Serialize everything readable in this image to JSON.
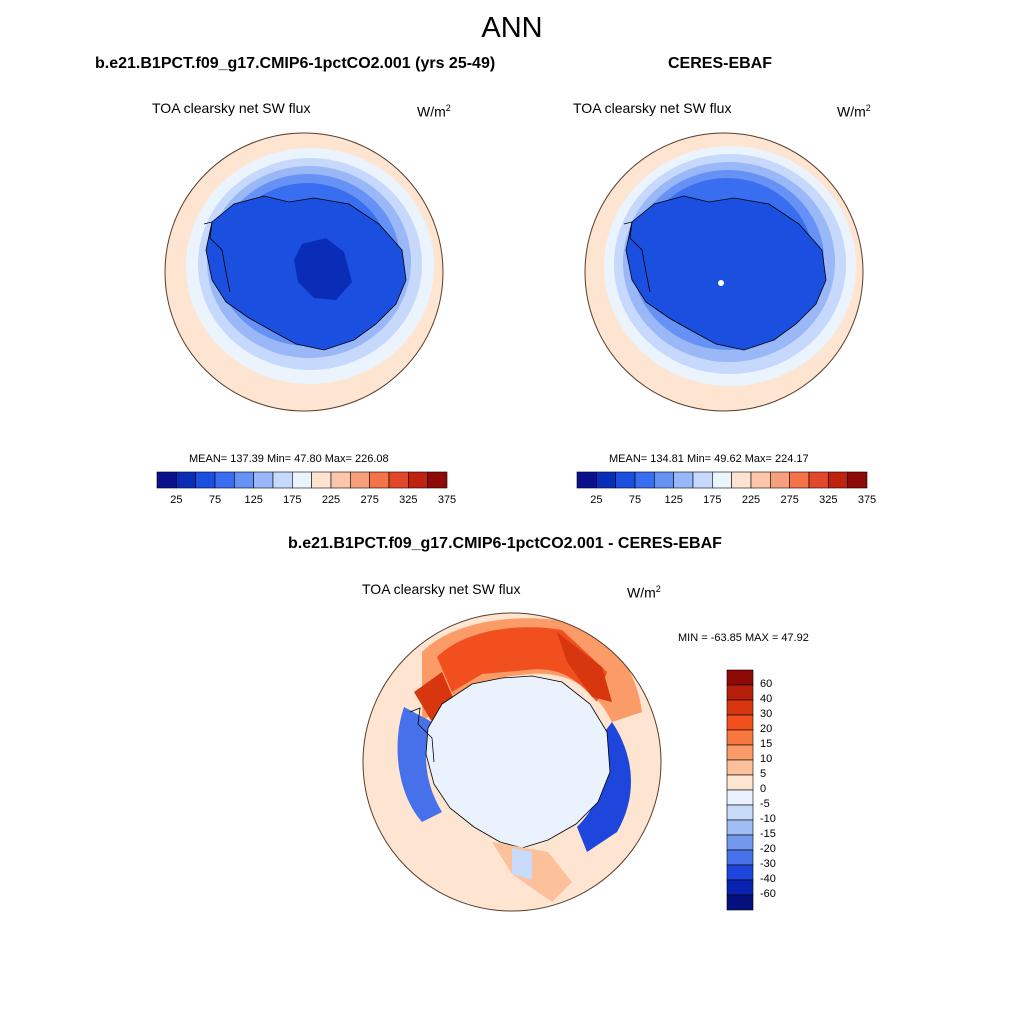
{
  "figure": {
    "title": "ANN"
  },
  "panels": [
    {
      "id": "model",
      "title": "b.e21.B1PCT.f09_g17.CMIP6-1pctCO2.001 (yrs 25-49)",
      "variable": "TOA clearsky net SW flux",
      "units_base": "W/m",
      "units_exp": "2",
      "stats": "MEAN= 137.39  Min=  47.80  Max= 226.08",
      "mean": 137.39,
      "min": 47.8,
      "max": 226.08
    },
    {
      "id": "obs",
      "title": "CERES-EBAF",
      "variable": "TOA clearsky net SW flux",
      "units_base": "W/m",
      "units_exp": "2",
      "stats": "MEAN= 134.81  Min=  49.62  Max= 224.17",
      "mean": 134.81,
      "min": 49.62,
      "max": 224.17
    },
    {
      "id": "diff",
      "title": "b.e21.B1PCT.f09_g17.CMIP6-1pctCO2.001 - CERES-EBAF",
      "variable": "TOA clearsky net SW flux",
      "units_base": "W/m",
      "units_exp": "2",
      "stats": "MIN = -63.85 MAX =  47.92",
      "min": -63.85,
      "max": 47.92
    }
  ],
  "colorbar_abs": {
    "tick_labels": [
      "25",
      "75",
      "125",
      "175",
      "225",
      "275",
      "325",
      "375"
    ],
    "colors": [
      "#0a0f8c",
      "#0a2db8",
      "#1a4fe0",
      "#3a6ef0",
      "#6692f5",
      "#9ab8f8",
      "#c6d8fb",
      "#ebf3fd",
      "#fde3d0",
      "#fbc6a9",
      "#f8a07c",
      "#f47348",
      "#e2472a",
      "#c02210",
      "#8e0a06"
    ]
  },
  "colorbar_diff": {
    "tick_labels": [
      "60",
      "40",
      "30",
      "20",
      "15",
      "10",
      "5",
      "0",
      "-5",
      "-10",
      "-15",
      "-20",
      "-30",
      "-40",
      "-60"
    ],
    "colors": [
      "#8e0a06",
      "#b81f0a",
      "#d8360f",
      "#f14f1e",
      "#f8773f",
      "#fb9b68",
      "#fcc09a",
      "#fde5d2",
      "#eaf3fd",
      "#c7daf8",
      "#9fbdf4",
      "#7399ef",
      "#4671ea",
      "#1e46dc",
      "#0a22b0",
      "#060f7e"
    ]
  },
  "colors": {
    "ocean_pale": "#fde5d2",
    "coast_line": "#000000"
  }
}
